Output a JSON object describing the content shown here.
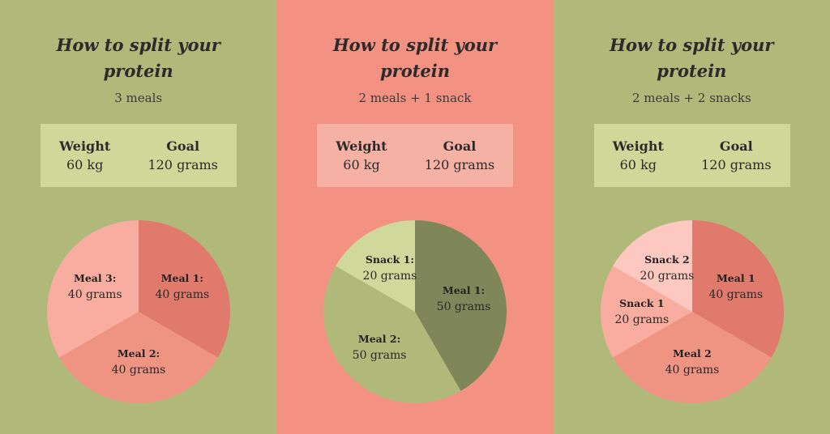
{
  "colors": {
    "green_bg": "#b0b97a",
    "salmon_bg": "#f39282",
    "statbox_green": "#cfd899",
    "statbox_salmon": "#f6b1a5"
  },
  "panels": [
    {
      "title": "How to split your protein",
      "subtitle": "3 meals",
      "bg": "#b0b97a",
      "statbox_bg": "#cfd899",
      "weight_label": "Weight",
      "weight_value": "60 kg",
      "goal_label": "Goal",
      "goal_value": "120 grams"
    },
    {
      "title": "How to split your protein",
      "subtitle": "2 meals + 1 snack",
      "bg": "#f39282",
      "statbox_bg": "#f6b1a5",
      "weight_label": "Weight",
      "weight_value": "60 kg",
      "goal_label": "Goal",
      "goal_value": "120 grams"
    },
    {
      "title": "How to split your protein",
      "subtitle": "2 meals + 2 snacks",
      "bg": "#b0b97a",
      "statbox_bg": "#cfd899",
      "weight_label": "Weight",
      "weight_value": "60 kg",
      "goal_label": "Goal",
      "goal_value": "120 grams"
    }
  ],
  "chart_data": [
    {
      "type": "pie",
      "slices": [
        {
          "name": "Meal 1:",
          "label": "40 grams",
          "value": 40,
          "color": "#e07a6c"
        },
        {
          "name": "Meal 2:",
          "label": "40 grams",
          "value": 40,
          "color": "#ef9483"
        },
        {
          "name": "Meal 3:",
          "label": "40 grams",
          "value": 40,
          "color": "#f8ada0"
        }
      ]
    },
    {
      "type": "pie",
      "slices": [
        {
          "name": "Meal 1:",
          "label": "50 grams",
          "value": 50,
          "color": "#7f8659"
        },
        {
          "name": "Meal 2:",
          "label": "50 grams",
          "value": 50,
          "color": "#b0b97a"
        },
        {
          "name": "Snack 1:",
          "label": "20 grams",
          "value": 20,
          "color": "#d0d99b"
        }
      ]
    },
    {
      "type": "pie",
      "slices": [
        {
          "name": "Meal 1",
          "label": "40 grams",
          "value": 40,
          "color": "#e07a6c"
        },
        {
          "name": "Meal 2",
          "label": "40 grams",
          "value": 40,
          "color": "#ef9483"
        },
        {
          "name": "Snack 1",
          "label": "20  grams",
          "value": 20,
          "color": "#f8ada0"
        },
        {
          "name": "Snack 2",
          "label": "20 grams",
          "value": 20,
          "color": "#fcc8c0"
        }
      ]
    }
  ]
}
